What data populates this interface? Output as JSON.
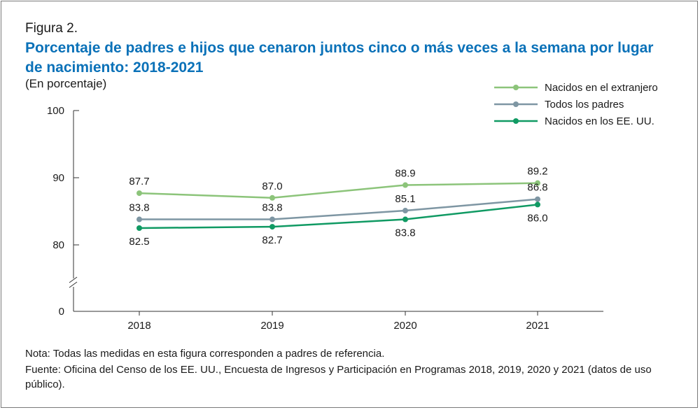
{
  "figure_label": "Figura 2.",
  "title": "Porcentaje de padres e hijos que cenaron juntos cinco o más veces a la semana por lugar de nacimiento: 2018-2021",
  "subtitle": "(En porcentaje)",
  "note": "Nota: Todas las medidas en esta figura corresponden a padres de referencia.",
  "source": "Fuente: Oficina del Censo de los EE. UU., Encuesta de Ingresos y Participación en Programas 2018, 2019, 2020 y 2021 (datos de uso público).",
  "chart_data": {
    "type": "line",
    "title": "Porcentaje de padres e hijos que cenaron juntos cinco o más veces a la semana por lugar de nacimiento: 2018-2021",
    "xlabel": "",
    "ylabel": "(En porcentaje)",
    "x": [
      "2018",
      "2019",
      "2020",
      "2021"
    ],
    "y_ticks": [
      "0",
      "80",
      "90",
      "100"
    ],
    "ylim": [
      0,
      100
    ],
    "y_break": "between 0 and 80",
    "legend_position": "top-right",
    "series": [
      {
        "name": "Nacidos en el extranjero",
        "color": "#8cc47a",
        "values": [
          87.7,
          87.0,
          88.9,
          89.2
        ],
        "labels": [
          "87.7",
          "87.0",
          "88.9",
          "89.2"
        ],
        "label_position": "above"
      },
      {
        "name": "Todos los padres",
        "color": "#7e96a3",
        "values": [
          83.8,
          83.8,
          85.1,
          86.8
        ],
        "labels": [
          "83.8",
          "83.8",
          "85.1",
          "86.8"
        ],
        "label_position": "above"
      },
      {
        "name": "Nacidos en los EE. UU.",
        "color": "#109a63",
        "values": [
          82.5,
          82.7,
          83.8,
          86.0
        ],
        "labels": [
          "82.5",
          "82.7",
          "83.8",
          "86.0"
        ],
        "label_position": "below"
      }
    ]
  }
}
